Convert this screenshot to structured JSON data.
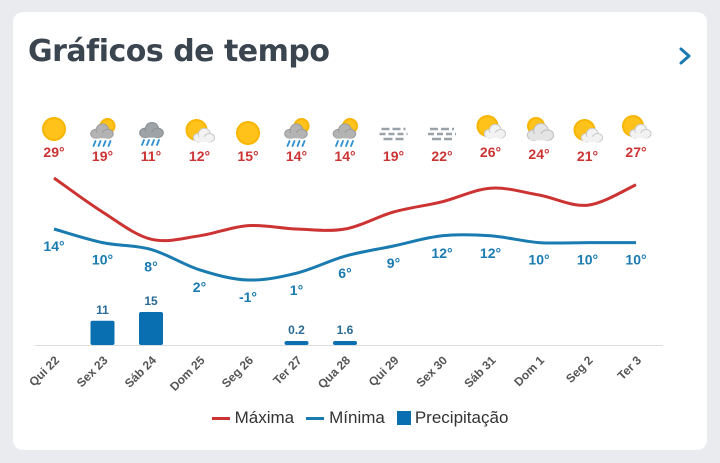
{
  "widget": {
    "title": "Gráficos de tempo",
    "chevron_icon": "chevron-right-icon"
  },
  "colors": {
    "max": "#cc3333",
    "min": "#1a7bb1",
    "precip": "#0a6fb0",
    "axis_text": "#555555",
    "grid": "#dddddd"
  },
  "chart_data": {
    "type": "line",
    "categories": [
      "Qui 22",
      "Sex 23",
      "Sáb 24",
      "Dom 25",
      "Seg 26",
      "Ter 27",
      "Qua 28",
      "Qui 29",
      "Sex 30",
      "Sáb 31",
      "Dom 1",
      "Seg 2",
      "Ter 3"
    ],
    "icons": [
      "sun-icon",
      "rain-icon",
      "heavy-rain-icon",
      "partly-cloudy-icon",
      "sun-icon",
      "rain-icon",
      "rain-icon",
      "fog-icon",
      "fog-icon",
      "partly-cloudy-icon",
      "cloudy-icon",
      "partly-cloudy-icon",
      "partly-cloudy-icon"
    ],
    "series": [
      {
        "name": "Máxima",
        "values": [
          29,
          19,
          11,
          12,
          15,
          14,
          14,
          19,
          22,
          26,
          24,
          21,
          27
        ]
      },
      {
        "name": "Mínima",
        "values": [
          14,
          10,
          8,
          2,
          -1,
          1,
          6,
          9,
          12,
          12,
          10,
          10,
          10
        ]
      },
      {
        "name": "Precipitação",
        "values": [
          null,
          11,
          15,
          null,
          null,
          0.2,
          1.6,
          null,
          null,
          null,
          null,
          null,
          null
        ]
      }
    ],
    "max_labels": [
      "29°",
      "19°",
      "11°",
      "12°",
      "15°",
      "14°",
      "14°",
      "19°",
      "22°",
      "26°",
      "24°",
      "21°",
      "27°"
    ],
    "min_labels": [
      "14°",
      "10°",
      "8°",
      "2°",
      "-1°",
      "1°",
      "6°",
      "9°",
      "12°",
      "12°",
      "10°",
      "10°",
      "10°"
    ],
    "precip_labels": [
      "",
      "11",
      "15",
      "",
      "",
      "0.2",
      "1.6",
      "",
      "",
      "",
      "",
      "",
      ""
    ],
    "legend": [
      "Máxima",
      "Mínima",
      "Precipitação"
    ],
    "legend_position": "bottom-center"
  }
}
